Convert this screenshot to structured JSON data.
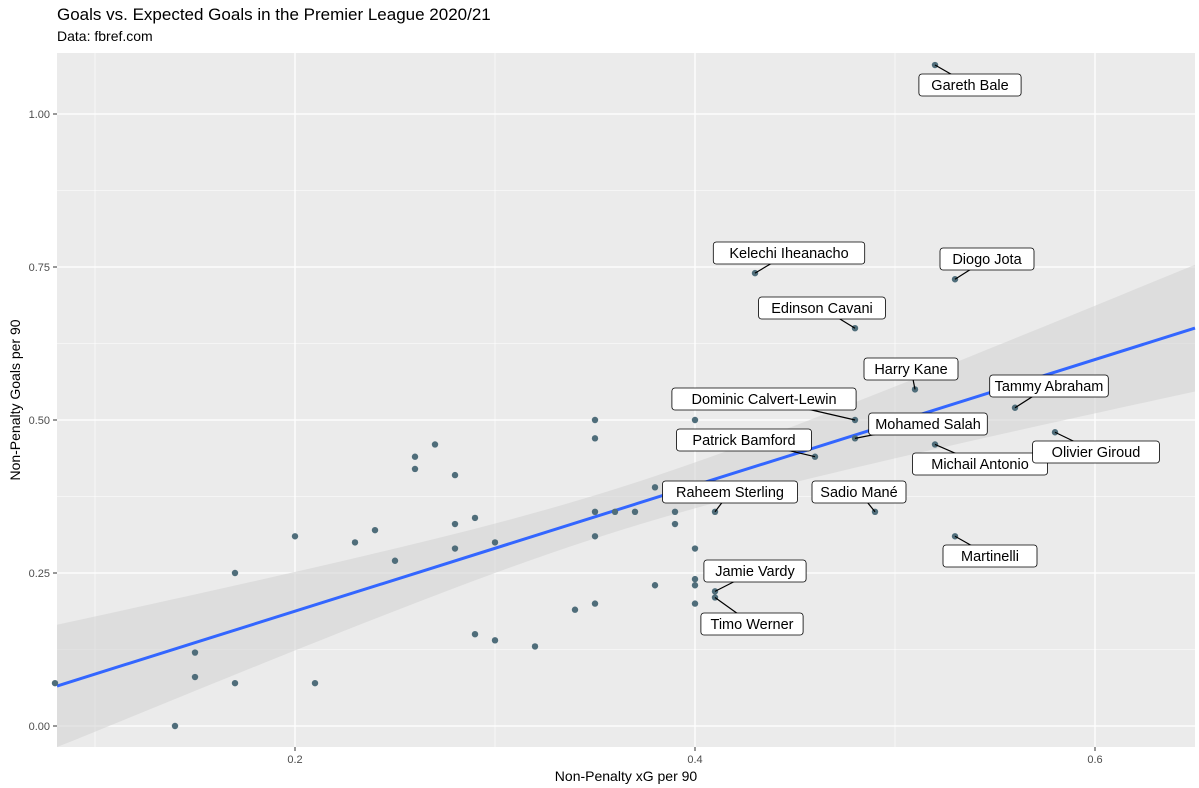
{
  "chart_data": {
    "type": "scatter",
    "title": "Goals vs. Expected Goals in the Premier League 2020/21",
    "subtitle": "Data: fbref.com",
    "xlabel": "Non-Penalty xG per 90",
    "ylabel": "Non-Penalty Goals per 90",
    "xlim": [
      0.081,
      0.65
    ],
    "ylim": [
      -0.034,
      1.1
    ],
    "x_ticks": [
      {
        "value": 0.2,
        "label": "0.2"
      },
      {
        "value": 0.4,
        "label": "0.4"
      },
      {
        "value": 0.6,
        "label": "0.6"
      }
    ],
    "y_ticks": [
      {
        "value": 0.0,
        "label": "0.00"
      },
      {
        "value": 0.25,
        "label": "0.25"
      },
      {
        "value": 0.5,
        "label": "0.50"
      },
      {
        "value": 0.75,
        "label": "0.75"
      },
      {
        "value": 1.0,
        "label": "1.00"
      }
    ],
    "grid": true,
    "colors": {
      "panel": "#ebebeb",
      "point": "#4f6d7a",
      "trend": "#3366ff",
      "band": "#d3d3d3"
    },
    "trend": {
      "type": "linear",
      "slope": 1.028,
      "intercept": -0.018,
      "confidence_band": true
    },
    "points": [
      {
        "x": 0.08,
        "y": 0.07
      },
      {
        "x": 0.14,
        "y": 0.0
      },
      {
        "x": 0.15,
        "y": 0.12
      },
      {
        "x": 0.15,
        "y": 0.08
      },
      {
        "x": 0.17,
        "y": 0.25
      },
      {
        "x": 0.17,
        "y": 0.07
      },
      {
        "x": 0.2,
        "y": 0.31
      },
      {
        "x": 0.21,
        "y": 0.07
      },
      {
        "x": 0.23,
        "y": 0.3
      },
      {
        "x": 0.24,
        "y": 0.32
      },
      {
        "x": 0.25,
        "y": 0.27
      },
      {
        "x": 0.26,
        "y": 0.44
      },
      {
        "x": 0.26,
        "y": 0.42
      },
      {
        "x": 0.27,
        "y": 0.46
      },
      {
        "x": 0.28,
        "y": 0.41
      },
      {
        "x": 0.28,
        "y": 0.33
      },
      {
        "x": 0.28,
        "y": 0.29
      },
      {
        "x": 0.29,
        "y": 0.34
      },
      {
        "x": 0.29,
        "y": 0.15
      },
      {
        "x": 0.3,
        "y": 0.3
      },
      {
        "x": 0.3,
        "y": 0.14
      },
      {
        "x": 0.32,
        "y": 0.13
      },
      {
        "x": 0.34,
        "y": 0.19
      },
      {
        "x": 0.35,
        "y": 0.5
      },
      {
        "x": 0.35,
        "y": 0.47
      },
      {
        "x": 0.35,
        "y": 0.35
      },
      {
        "x": 0.35,
        "y": 0.31
      },
      {
        "x": 0.35,
        "y": 0.2
      },
      {
        "x": 0.36,
        "y": 0.35
      },
      {
        "x": 0.37,
        "y": 0.35
      },
      {
        "x": 0.38,
        "y": 0.39
      },
      {
        "x": 0.38,
        "y": 0.23
      },
      {
        "x": 0.39,
        "y": 0.35
      },
      {
        "x": 0.39,
        "y": 0.33
      },
      {
        "x": 0.4,
        "y": 0.5
      },
      {
        "x": 0.4,
        "y": 0.29
      },
      {
        "x": 0.4,
        "y": 0.24
      },
      {
        "x": 0.4,
        "y": 0.23
      },
      {
        "x": 0.4,
        "y": 0.2
      },
      {
        "x": 0.41,
        "y": 0.35,
        "label": "Raheem Sterling"
      },
      {
        "x": 0.41,
        "y": 0.22,
        "label": "Jamie Vardy"
      },
      {
        "x": 0.41,
        "y": 0.21,
        "label": "Timo Werner"
      },
      {
        "x": 0.43,
        "y": 0.74,
        "label": "Kelechi Iheanacho"
      },
      {
        "x": 0.46,
        "y": 0.44,
        "label": "Patrick Bamford"
      },
      {
        "x": 0.48,
        "y": 0.65,
        "label": "Edinson Cavani"
      },
      {
        "x": 0.48,
        "y": 0.5,
        "label": "Dominic Calvert-Lewin"
      },
      {
        "x": 0.48,
        "y": 0.47,
        "label": "Mohamed Salah"
      },
      {
        "x": 0.49,
        "y": 0.35,
        "label": "Sadio Mané"
      },
      {
        "x": 0.51,
        "y": 0.55,
        "label": "Harry Kane"
      },
      {
        "x": 0.52,
        "y": 1.08,
        "label": "Gareth Bale"
      },
      {
        "x": 0.52,
        "y": 0.46,
        "label": "Michail Antonio"
      },
      {
        "x": 0.53,
        "y": 0.73,
        "label": "Diogo Jota"
      },
      {
        "x": 0.53,
        "y": 0.31,
        "label": "Martinelli"
      },
      {
        "x": 0.56,
        "y": 0.52,
        "label": "Tammy Abraham"
      },
      {
        "x": 0.58,
        "y": 0.48,
        "label": "Olivier Giroud"
      }
    ]
  }
}
